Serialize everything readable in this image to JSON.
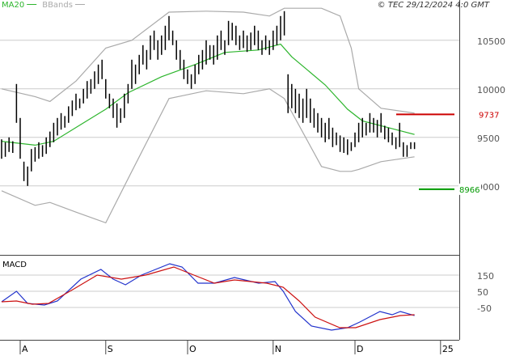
{
  "chart_data": [
    {
      "type": "hilo",
      "annotation": "© TEC 29/12/2024 4:0 GMT",
      "high": [
        9480,
        9450,
        9500,
        9460,
        10050,
        9700,
        9250,
        9200,
        9380,
        9400,
        9450,
        9420,
        9500,
        9560,
        9650,
        9700,
        9750,
        9720,
        9820,
        9880,
        9950,
        9900,
        10000,
        10080,
        10100,
        10180,
        10250,
        10300,
        10100,
        9950,
        9900,
        9850,
        9800,
        9950,
        10050,
        10300,
        10250,
        10350,
        10450,
        10400,
        10550,
        10600,
        10500,
        10550,
        10650,
        10750,
        10600,
        10500,
        10400,
        10300,
        10200,
        10150,
        10250,
        10350,
        10400,
        10500,
        10450,
        10450,
        10550,
        10600,
        10500,
        10700,
        10680,
        10650,
        10550,
        10600,
        10550,
        10580,
        10650,
        10600,
        10500,
        10550,
        10500,
        10600,
        10650,
        10750,
        10800,
        10150,
        10050,
        10000,
        9950,
        9900,
        10000,
        9900,
        9800,
        9750,
        9700,
        9650,
        9700,
        9600,
        9550,
        9520,
        9500,
        9480,
        9450,
        9550,
        9650,
        9700,
        9650,
        9750,
        9700,
        9680,
        9750,
        9620,
        9600,
        9550,
        9500,
        9650,
        9450,
        9420,
        9450,
        9450
      ],
      "low": [
        9280,
        9300,
        9350,
        9340,
        9650,
        9280,
        9050,
        9000,
        9150,
        9250,
        9280,
        9300,
        9330,
        9400,
        9450,
        9520,
        9580,
        9600,
        9650,
        9720,
        9780,
        9800,
        9850,
        9900,
        9950,
        10000,
        10050,
        10100,
        9900,
        9800,
        9700,
        9600,
        9650,
        9700,
        9850,
        10000,
        10050,
        10150,
        10250,
        10200,
        10300,
        10400,
        10300,
        10350,
        10400,
        10500,
        10450,
        10300,
        10200,
        10100,
        10050,
        10000,
        10050,
        10150,
        10200,
        10250,
        10300,
        10250,
        10300,
        10400,
        10350,
        10450,
        10500,
        10450,
        10400,
        10420,
        10380,
        10400,
        10450,
        10400,
        10350,
        10400,
        10350,
        10400,
        10450,
        10500,
        10550,
        9750,
        9800,
        9750,
        9700,
        9650,
        9700,
        9650,
        9600,
        9550,
        9500,
        9450,
        9480,
        9400,
        9420,
        9350,
        9340,
        9320,
        9360,
        9400,
        9450,
        9500,
        9520,
        9550,
        9550,
        9500,
        9550,
        9480,
        9450,
        9420,
        9380,
        9400,
        9300,
        9300,
        9380,
        9380
      ],
      "bar_color": "#000000",
      "series": [
        {
          "name": "MA20",
          "color": "#2db52d",
          "x": [
            0,
            9,
            14,
            21,
            28,
            34,
            43,
            52,
            60,
            69,
            75,
            78,
            87,
            93,
            97,
            104,
            111
          ],
          "values": [
            9460,
            9420,
            9460,
            9625,
            9790,
            9960,
            10125,
            10250,
            10375,
            10400,
            10460,
            10330,
            10040,
            9790,
            9670,
            9600,
            9530
          ]
        },
        {
          "name": "BBands",
          "color": "#aaaaaa",
          "x": [
            0,
            9,
            13,
            20,
            28,
            35,
            45,
            55,
            65,
            72,
            76,
            86,
            91,
            94,
            96,
            102,
            111
          ],
          "values": [
            10000,
            9920,
            9870,
            10080,
            10420,
            10500,
            10790,
            10800,
            10790,
            10750,
            10830,
            10830,
            10750,
            10420,
            10000,
            9800,
            9750
          ],
          "lower": [
            8950,
            8800,
            8830,
            8730,
            8620,
            9150,
            9900,
            9980,
            9950,
            10000,
            9900,
            9200,
            9150,
            9150,
            9170,
            9250,
            9300
          ]
        }
      ],
      "levels": [
        {
          "value": 9737,
          "color": "#cc0000"
        },
        {
          "value": 8966,
          "color": "#009900"
        }
      ],
      "xlim": [
        -0.43,
        123.04
      ],
      "ylim": [
        8290,
        10915
      ],
      "yticks": [
        9000,
        9500,
        10000,
        10500
      ],
      "grid": true
    },
    {
      "type": "line",
      "title": "MACD",
      "series": [
        {
          "color": "#2233cc",
          "x": [
            0,
            4,
            7,
            11.5,
            15,
            21.3,
            26.7,
            30,
            33.3,
            37.6,
            45.2,
            48.5,
            52.8,
            57.2,
            62.6,
            69.1,
            73.5,
            75.7,
            79,
            83.3,
            88.7,
            93,
            96.3,
            101.7,
            105,
            107.2,
            111
          ],
          "values": [
            -15,
            50,
            -25,
            -35,
            -10,
            125,
            185,
            125,
            90,
            150,
            220,
            200,
            100,
            100,
            135,
            100,
            110,
            50,
            -75,
            -165,
            -190,
            -175,
            -140,
            -75,
            -95,
            -75,
            -100
          ]
        },
        {
          "color": "#cc1111",
          "x": [
            0,
            4,
            8.3,
            12.6,
            19.1,
            25.7,
            32.2,
            38.7,
            46.3,
            51.7,
            57.2,
            62.6,
            71.3,
            75.7,
            80,
            84.3,
            90.9,
            95.2,
            101.7,
            107.2,
            111
          ],
          "values": [
            -15,
            -10,
            -30,
            -25,
            60,
            150,
            125,
            150,
            200,
            150,
            100,
            120,
            100,
            75,
            -10,
            -110,
            -175,
            -175,
            -125,
            -100,
            -95
          ]
        }
      ],
      "xlim": [
        -0.43,
        123.04
      ],
      "ylim": [
        -250,
        260
      ],
      "yticks": [
        150,
        50,
        -50
      ],
      "grid": true,
      "xticks": [
        {
          "value": 5,
          "label": "A"
        },
        {
          "value": 28,
          "label": "S"
        },
        {
          "value": 50,
          "label": "O"
        },
        {
          "value": 73,
          "label": "N"
        },
        {
          "value": 95,
          "label": "D"
        },
        {
          "value": 118,
          "label": "25"
        }
      ]
    }
  ]
}
